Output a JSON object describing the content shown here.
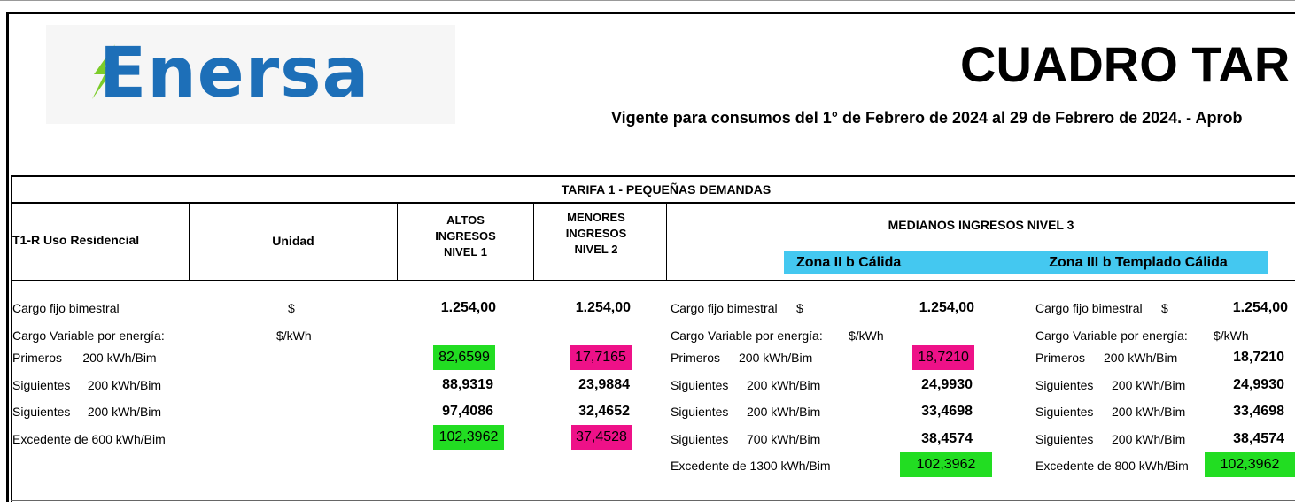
{
  "logo": {
    "text": "Enersa",
    "color": "#1d6fb8",
    "bolt_color": "#7ccc2a"
  },
  "title": "CUADRO TAR",
  "subtitle": "Vigente para consumos del 1°  de Febrero de 2024 al 29 de Febrero de 2024. -  Aprob",
  "tarifa_title": "TARIFA 1 - PEQUEÑAS DEMANDAS",
  "headers": {
    "uso": "T1-R Uso Residencial",
    "unidad": "Unidad",
    "altos": [
      "ALTOS",
      "INGRESOS",
      "NIVEL 1"
    ],
    "menores": [
      "MENORES",
      "INGRESOS",
      "NIVEL 2"
    ],
    "medianos": "MEDIANOS INGRESOS NIVEL 3",
    "zona2": "Zona II b Cálida",
    "zona3": "Zona III b Templado Cálida"
  },
  "colors": {
    "green": "#22dd22",
    "pink": "#ee1188",
    "zone": "#44c8f0"
  },
  "left_rows": {
    "cargo_fijo": "Cargo fijo bimestral",
    "cargo_fijo_unit": "$",
    "cargo_var": "Cargo Variable por energía:",
    "cargo_var_unit": "$/kWh",
    "primeros": "Primeros      200 kWh/Bim",
    "siguientes1": "Siguientes     200 kWh/Bim",
    "siguientes2": "Siguientes     200 kWh/Bim",
    "excedente": "Excedente de 600 kWh/Bim"
  },
  "altos_values": [
    "1.254,00",
    "82,6599",
    "88,9319",
    "97,4086",
    "102,3962"
  ],
  "menores_values": [
    "1.254,00",
    "17,7165",
    "23,9884",
    "32,4652",
    "37,4528"
  ],
  "zona2": {
    "cargo_fijo": "Cargo fijo bimestral",
    "cargo_fijo_unit": "$",
    "cargo_fijo_value": "1.254,00",
    "cargo_var": "Cargo Variable por energía:",
    "cargo_var_unit": "$/kWh",
    "rows": [
      {
        "label": "Primeros",
        "qty": "200 kWh/Bim",
        "value": "18,7210"
      },
      {
        "label": "Siguientes",
        "qty": "200 kWh/Bim",
        "value": "24,9930"
      },
      {
        "label": "Siguientes",
        "qty": "200 kWh/Bim",
        "value": "33,4698"
      },
      {
        "label": "Siguientes",
        "qty": "700 kWh/Bim",
        "value": "38,4574"
      }
    ],
    "excedente": "Excedente de 1300 kWh/Bim",
    "excedente_value": "102,3962"
  },
  "zona3": {
    "cargo_fijo": "Cargo fijo bimestral",
    "cargo_fijo_unit": "$",
    "cargo_fijo_value": "1.254,00",
    "cargo_var": "Cargo Variable por energía:",
    "cargo_var_unit": "$/kWh",
    "rows": [
      {
        "label": "Primeros",
        "qty": "200 kWh/Bim",
        "value": "18,7210"
      },
      {
        "label": "Siguientes",
        "qty": "200 kWh/Bim",
        "value": "24,9930"
      },
      {
        "label": "Siguientes",
        "qty": "200 kWh/Bim",
        "value": "33,4698"
      },
      {
        "label": "Siguientes",
        "qty": "200 kWh/Bim",
        "value": "38,4574"
      }
    ],
    "excedente": "Excedente de 800 kWh/Bim",
    "excedente_value": "102,3962"
  }
}
